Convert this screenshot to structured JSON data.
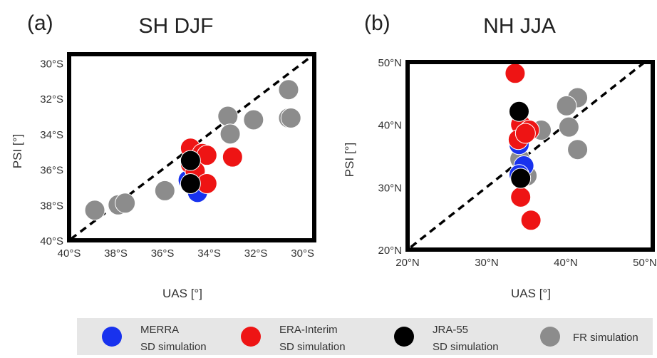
{
  "chart_data": [
    {
      "type": "scatter",
      "panel_label": "(a)",
      "title": "SH DJF",
      "xlabel": "UAS [°]",
      "ylabel": "PSI [°]",
      "xlim": [
        -40,
        -29.5
      ],
      "ylim": [
        -40,
        -29.5
      ],
      "x_ticks": [
        -40,
        -38,
        -36,
        -34,
        -32,
        -30
      ],
      "x_tick_labels": [
        "40°S",
        "38°S",
        "36°S",
        "34°S",
        "32°S",
        "30°S"
      ],
      "y_ticks": [
        -30,
        -32,
        -34,
        -36,
        -38,
        -40
      ],
      "y_tick_labels": [
        "30°S",
        "32°S",
        "34°S",
        "36°S",
        "38°S",
        "40°S"
      ],
      "one_to_one_line": true,
      "series": [
        {
          "name": "FR simulation",
          "color": "#8c8c8c",
          "points": [
            [
              -38.9,
              -38.3
            ],
            [
              -37.9,
              -38.0
            ],
            [
              -37.6,
              -37.9
            ],
            [
              -35.9,
              -37.2
            ],
            [
              -33.2,
              -33.0
            ],
            [
              -33.1,
              -34.0
            ],
            [
              -32.1,
              -33.2
            ],
            [
              -30.6,
              -31.5
            ],
            [
              -30.6,
              -33.1
            ],
            [
              -30.5,
              -33.1
            ]
          ]
        },
        {
          "name": "MERRA SD simulation",
          "color": "#1832ee",
          "points": [
            [
              -34.9,
              -36.6
            ],
            [
              -34.5,
              -37.3
            ],
            [
              -34.6,
              -36.4
            ]
          ]
        },
        {
          "name": "ERA-Interim SD simulation",
          "color": "#ee1414",
          "points": [
            [
              -34.8,
              -34.8
            ],
            [
              -34.3,
              -35.1
            ],
            [
              -34.1,
              -35.2
            ],
            [
              -34.8,
              -35.7
            ],
            [
              -34.6,
              -36.1
            ],
            [
              -33.0,
              -35.3
            ],
            [
              -34.1,
              -36.8
            ]
          ]
        },
        {
          "name": "JRA-55 SD simulation",
          "color": "#000000",
          "points": [
            [
              -34.8,
              -35.5
            ],
            [
              -34.8,
              -36.8
            ]
          ]
        }
      ]
    },
    {
      "type": "scatter",
      "panel_label": "(b)",
      "title": "NH JJA",
      "xlabel": "UAS [°]",
      "ylabel": "PSI [°]",
      "xlim": [
        20,
        51
      ],
      "ylim": [
        20,
        50
      ],
      "x_ticks": [
        20,
        30,
        40,
        50
      ],
      "x_tick_labels": [
        "20°N",
        "30°N",
        "40°N",
        "50°N"
      ],
      "y_ticks": [
        50,
        40,
        30,
        20
      ],
      "y_tick_labels": [
        "50°N",
        "40°N",
        "30°N",
        "20°N"
      ],
      "one_to_one_line": true,
      "series": [
        {
          "name": "FR simulation",
          "color": "#8c8c8c",
          "points": [
            [
              41.5,
              44.3
            ],
            [
              40.1,
              43.0
            ],
            [
              36.9,
              39.1
            ],
            [
              40.4,
              39.6
            ],
            [
              41.5,
              36.0
            ],
            [
              34.2,
              34.5
            ],
            [
              35.1,
              31.8
            ]
          ]
        },
        {
          "name": "MERRA SD simulation",
          "color": "#1832ee",
          "points": [
            [
              34.1,
              36.8
            ],
            [
              34.7,
              33.4
            ],
            [
              34.1,
              32.0
            ]
          ]
        },
        {
          "name": "ERA-Interim SD simulation",
          "color": "#ee1414",
          "points": [
            [
              33.6,
              48.2
            ],
            [
              34.3,
              40.0
            ],
            [
              35.4,
              39.1
            ],
            [
              34.0,
              37.6
            ],
            [
              34.9,
              38.6
            ],
            [
              34.3,
              28.4
            ],
            [
              35.6,
              24.7
            ]
          ]
        },
        {
          "name": "JRA-55 SD simulation",
          "color": "#000000",
          "points": [
            [
              34.1,
              42.1
            ],
            [
              34.3,
              31.4
            ]
          ]
        }
      ]
    }
  ],
  "legend": [
    {
      "line1": "MERRA",
      "line2": "SD simulation",
      "color": "#1832ee"
    },
    {
      "line1": "ERA-Interim",
      "line2": "SD simulation",
      "color": "#ee1414"
    },
    {
      "line1": "JRA-55",
      "line2": "SD simulation",
      "color": "#000000"
    },
    {
      "line1": "FR simulation",
      "line2": "",
      "color": "#8c8c8c"
    }
  ]
}
